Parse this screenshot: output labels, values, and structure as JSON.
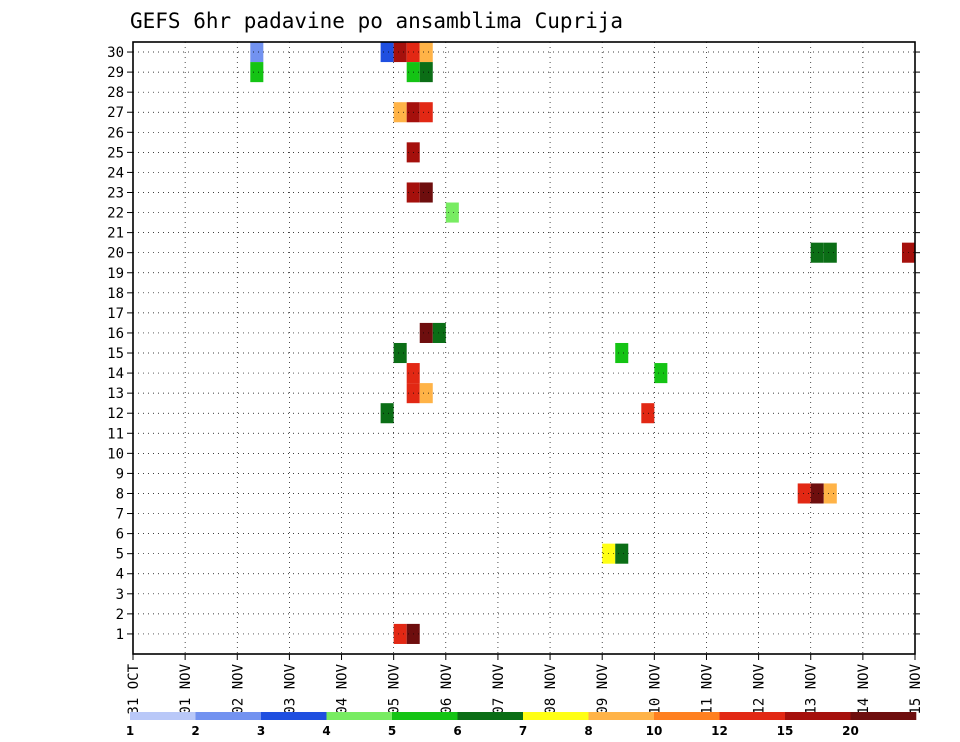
{
  "chart_data": {
    "type": "heatmap",
    "title": "GEFS 6hr padavine po ansamblima Cuprija",
    "xlabel": "",
    "ylabel": "",
    "x_tick_labels": [
      "31 OCT",
      "01 NOV",
      "02 NOV",
      "03 NOV",
      "04 NOV",
      "05 NOV",
      "06 NOV",
      "07 NOV",
      "08 NOV",
      "09 NOV",
      "10 NOV",
      "11 NOV",
      "12 NOV",
      "13 NOV",
      "14 NOV",
      "15 NOV"
    ],
    "xlim": [
      0,
      15
    ],
    "y_tick_labels": [
      "1",
      "2",
      "3",
      "4",
      "5",
      "6",
      "7",
      "8",
      "9",
      "10",
      "11",
      "12",
      "13",
      "14",
      "15",
      "16",
      "17",
      "18",
      "19",
      "20",
      "21",
      "22",
      "23",
      "24",
      "25",
      "26",
      "27",
      "28",
      "29",
      "30"
    ],
    "ylim": [
      0,
      30
    ],
    "grid": true,
    "legend": {
      "position": "bottom",
      "labels": [
        "1",
        "2",
        "3",
        "4",
        "5",
        "6",
        "7",
        "8",
        "10",
        "12",
        "15",
        "20"
      ],
      "colors": [
        "#b9c8f8",
        "#7292f0",
        "#1f4fe0",
        "#78ec62",
        "#14c414",
        "#0b6e16",
        "#ffff14",
        "#ffb347",
        "#ff8020",
        "#e22814",
        "#a5100c",
        "#6e0e0e"
      ]
    },
    "ensemble_cells": [
      {
        "member": 30,
        "step": 9,
        "level": 2
      },
      {
        "member": 30,
        "step": 19,
        "level": 3
      },
      {
        "member": 30,
        "step": 20,
        "level": 11
      },
      {
        "member": 30,
        "step": 21,
        "level": 10
      },
      {
        "member": 30,
        "step": 22,
        "level": 8
      },
      {
        "member": 29,
        "step": 9,
        "level": 5
      },
      {
        "member": 29,
        "step": 21,
        "level": 5
      },
      {
        "member": 29,
        "step": 22,
        "level": 6
      },
      {
        "member": 27,
        "step": 20,
        "level": 8
      },
      {
        "member": 27,
        "step": 21,
        "level": 11
      },
      {
        "member": 27,
        "step": 22,
        "level": 10
      },
      {
        "member": 25,
        "step": 21,
        "level": 11
      },
      {
        "member": 23,
        "step": 21,
        "level": 11
      },
      {
        "member": 23,
        "step": 22,
        "level": 12
      },
      {
        "member": 22,
        "step": 24,
        "level": 4
      },
      {
        "member": 20,
        "step": 52,
        "level": 6
      },
      {
        "member": 20,
        "step": 53,
        "level": 6
      },
      {
        "member": 20,
        "step": 59,
        "level": 11
      },
      {
        "member": 16,
        "step": 22,
        "level": 12
      },
      {
        "member": 16,
        "step": 23,
        "level": 6
      },
      {
        "member": 15,
        "step": 20,
        "level": 6
      },
      {
        "member": 15,
        "step": 37,
        "level": 5
      },
      {
        "member": 14,
        "step": 21,
        "level": 10
      },
      {
        "member": 14,
        "step": 40,
        "level": 5
      },
      {
        "member": 13,
        "step": 21,
        "level": 10
      },
      {
        "member": 13,
        "step": 22,
        "level": 8
      },
      {
        "member": 12,
        "step": 19,
        "level": 6
      },
      {
        "member": 12,
        "step": 39,
        "level": 10
      },
      {
        "member": 8,
        "step": 51,
        "level": 10
      },
      {
        "member": 8,
        "step": 52,
        "level": 12
      },
      {
        "member": 8,
        "step": 53,
        "level": 8
      },
      {
        "member": 5,
        "step": 36,
        "level": 7
      },
      {
        "member": 5,
        "step": 37,
        "level": 6
      },
      {
        "member": 1,
        "step": 20,
        "level": 10
      },
      {
        "member": 1,
        "step": 21,
        "level": 12
      }
    ]
  }
}
